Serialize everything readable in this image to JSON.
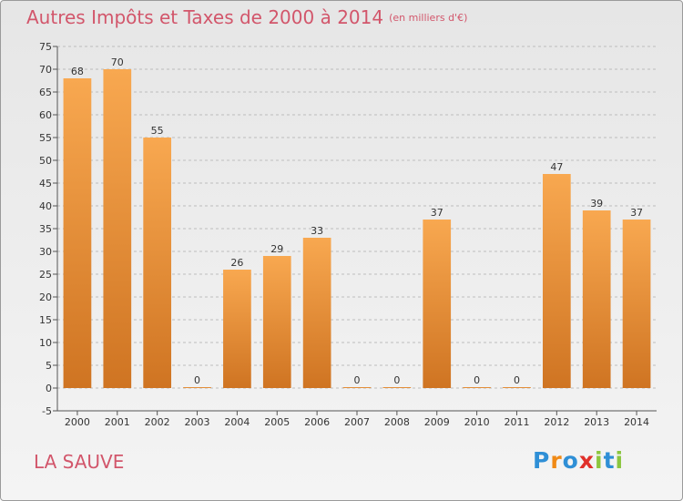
{
  "title": "Autres Impôts et Taxes de 2000 à 2014",
  "subtitle": "(en milliers d'€)",
  "location_label": "LA SAUVE",
  "brand": {
    "text": "Proxiti",
    "letters": [
      {
        "ch": "P",
        "color": "#2f8fd6"
      },
      {
        "ch": "r",
        "color": "#f08a16"
      },
      {
        "ch": "o",
        "color": "#2f8fd6"
      },
      {
        "ch": "x",
        "color": "#e0302a"
      },
      {
        "ch": "i",
        "color": "#8cc63f"
      },
      {
        "ch": "t",
        "color": "#2f8fd6"
      },
      {
        "ch": "i",
        "color": "#8cc63f"
      }
    ]
  },
  "colors": {
    "title": "#d2566b",
    "bar_light": "#f8a850",
    "bar_dark": "#cf7422",
    "grid": "#bdbdbd"
  },
  "chart_data": {
    "type": "bar",
    "title": "Autres Impôts et Taxes de 2000 à 2014",
    "subtitle": "(en milliers d'€)",
    "categories": [
      "2000",
      "2001",
      "2002",
      "2003",
      "2004",
      "2005",
      "2006",
      "2007",
      "2008",
      "2009",
      "2010",
      "2011",
      "2012",
      "2013",
      "2014"
    ],
    "values": [
      68,
      70,
      55,
      0,
      26,
      29,
      33,
      0,
      0,
      37,
      0,
      0,
      47,
      39,
      37
    ],
    "ylim": [
      -5,
      75
    ],
    "yticks": [
      -5,
      0,
      5,
      10,
      15,
      20,
      25,
      30,
      35,
      40,
      45,
      50,
      55,
      60,
      65,
      70,
      75
    ],
    "grid": true
  }
}
